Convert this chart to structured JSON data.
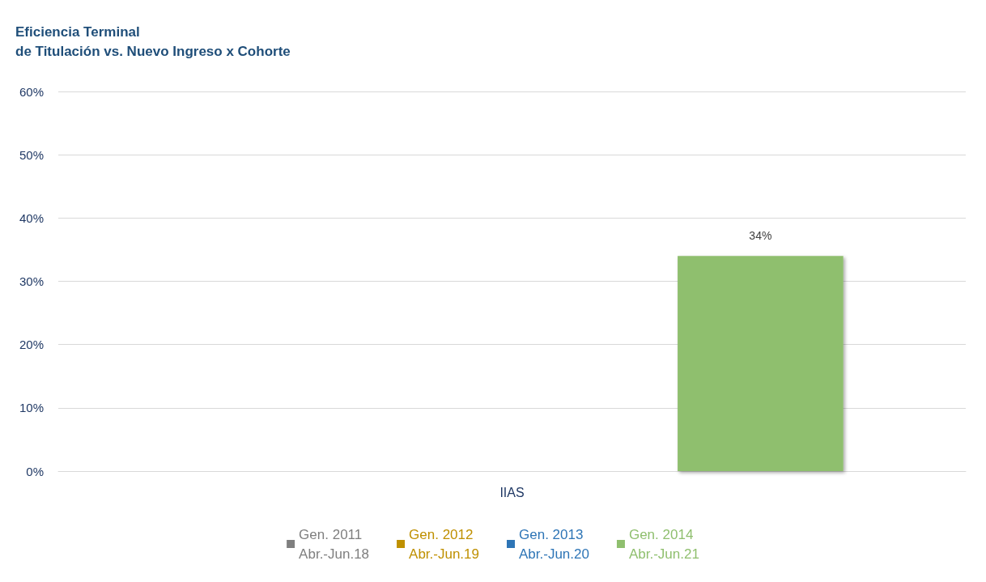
{
  "chart_data": {
    "type": "bar",
    "title": "Eficiencia Terminal\nde Titulación vs. Nuevo Ingreso x Cohorte",
    "categories": [
      "IIAS"
    ],
    "series": [
      {
        "name": "Gen. 2011\nAbr.-Jun.18",
        "color": "#7f7f7f",
        "values": [
          null
        ]
      },
      {
        "name": "Gen. 2012\nAbr.-Jun.19",
        "color": "#bf9000",
        "values": [
          null
        ]
      },
      {
        "name": "Gen. 2013\nAbr.-Jun.20",
        "color": "#2e75b6",
        "values": [
          null
        ]
      },
      {
        "name": "Gen. 2014\nAbr.-Jun.21",
        "color": "#8fbf6e",
        "values": [
          34
        ],
        "value_labels": [
          "34%"
        ]
      }
    ],
    "ylim": [
      0,
      60
    ],
    "yticks": [
      {
        "value": 0,
        "label": "0%"
      },
      {
        "value": 10,
        "label": "10%"
      },
      {
        "value": 20,
        "label": "20%"
      },
      {
        "value": 30,
        "label": "30%"
      },
      {
        "value": 40,
        "label": "40%"
      },
      {
        "value": 50,
        "label": "50%"
      },
      {
        "value": 60,
        "label": "60%"
      }
    ],
    "grid": "y",
    "legend": "bottom"
  }
}
